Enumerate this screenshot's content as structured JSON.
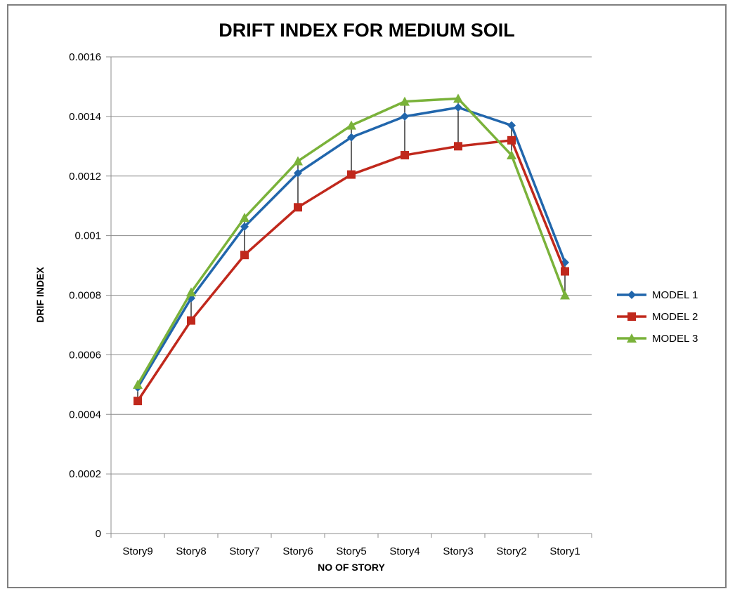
{
  "chart_data": {
    "type": "line",
    "title": "DRIFT INDEX FOR MEDIUM SOIL",
    "xlabel": "NO OF STORY",
    "ylabel": "DRIF INDEX",
    "categories": [
      "Story9",
      "Story8",
      "Story7",
      "Story6",
      "Story5",
      "Story4",
      "Story3",
      "Story2",
      "Story1"
    ],
    "ylim": [
      0,
      0.0016
    ],
    "yticks": [
      "0",
      "0.0002",
      "0.0004",
      "0.0006",
      "0.0008",
      "0.001",
      "0.0012",
      "0.0014",
      "0.0016"
    ],
    "ytick_values": [
      0,
      0.0002,
      0.0004,
      0.0006,
      0.0008,
      0.001,
      0.0012,
      0.0014,
      0.0016
    ],
    "grid": true,
    "legend_position": "right",
    "drop_lines": true,
    "series": [
      {
        "name": "MODEL 1",
        "color": "#2166ac",
        "marker": "diamond",
        "values": [
          0.00049,
          0.00079,
          0.00103,
          0.00121,
          0.00133,
          0.0014,
          0.00143,
          0.00137,
          0.00091
        ]
      },
      {
        "name": "MODEL 2",
        "color": "#c0281c",
        "marker": "square",
        "values": [
          0.000445,
          0.000715,
          0.000935,
          0.001095,
          0.001205,
          0.00127,
          0.0013,
          0.00132,
          0.00088
        ]
      },
      {
        "name": "MODEL 3",
        "color": "#7ab23a",
        "marker": "triangle",
        "values": [
          0.0005,
          0.00081,
          0.00106,
          0.00125,
          0.00137,
          0.00145,
          0.00146,
          0.00127,
          0.0008
        ]
      }
    ]
  }
}
